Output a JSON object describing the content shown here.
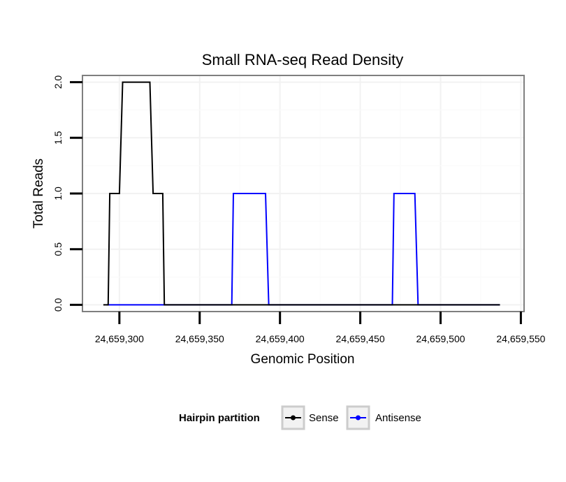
{
  "chart_data": {
    "type": "line",
    "title": "Small RNA-seq Read Density",
    "xlabel": "Genomic Position",
    "ylabel": "Total Reads",
    "xlim": [
      24659277,
      24659552
    ],
    "ylim": [
      -0.06,
      2.06
    ],
    "x_ticks": [
      24659300,
      24659350,
      24659400,
      24659450,
      24659500,
      24659550
    ],
    "x_tick_labels": [
      "24,659,300",
      "24,659,350",
      "24,659,400",
      "24,659,450",
      "24,659,500",
      "24,659,550"
    ],
    "y_ticks": [
      0,
      0.5,
      1,
      1.5,
      2
    ],
    "y_tick_labels": [
      "0.0",
      "0.5",
      "1.0",
      "1.5",
      "2.0"
    ],
    "grid": true,
    "legend": {
      "title": "Hairpin partition",
      "position": "bottom"
    },
    "series": [
      {
        "name": "Antisense",
        "color": "#0000ff",
        "x": [
          24659292,
          24659370,
          24659371,
          24659391,
          24659393,
          24659470,
          24659471,
          24659484,
          24659486,
          24659537
        ],
        "y": [
          0,
          0,
          1,
          1,
          0,
          0,
          1,
          1,
          0,
          0
        ]
      },
      {
        "name": "Sense",
        "color": "#000000",
        "x": [
          24659290,
          24659293,
          24659294,
          24659300,
          24659302,
          24659319,
          24659321,
          24659327,
          24659328,
          24659537
        ],
        "y": [
          0,
          0,
          1,
          1,
          2,
          2,
          1,
          1,
          0,
          0
        ]
      }
    ]
  }
}
